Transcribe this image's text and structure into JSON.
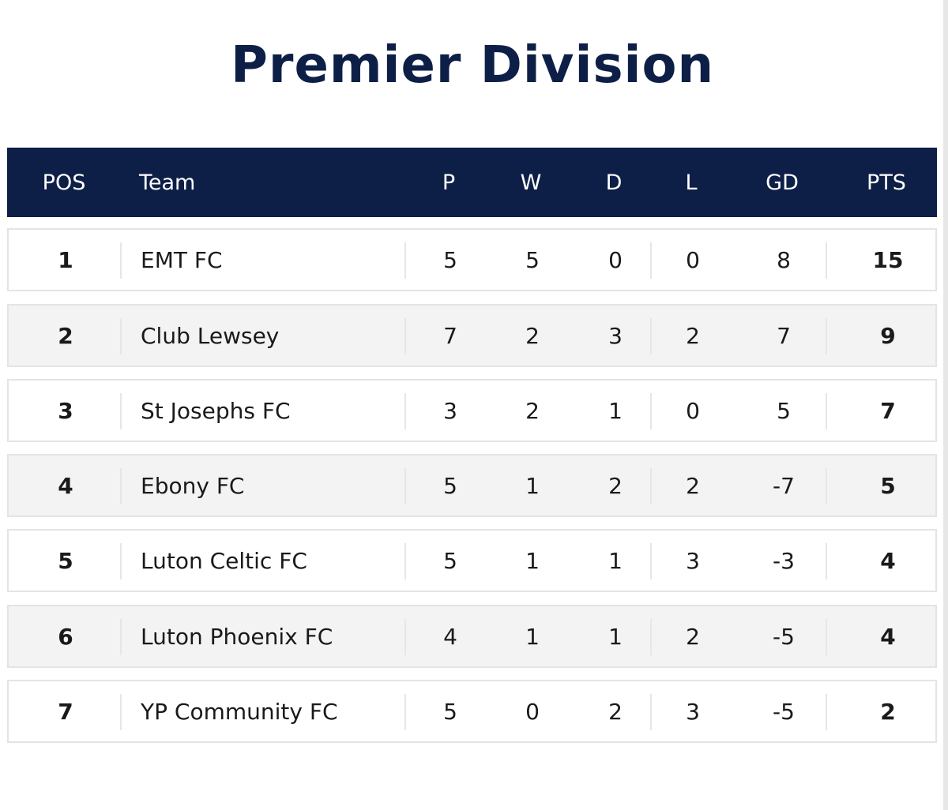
{
  "title": "Premier Division",
  "columns": {
    "pos": "POS",
    "team": "Team",
    "p": "P",
    "w": "W",
    "d": "D",
    "l": "L",
    "gd": "GD",
    "pts": "PTS"
  },
  "rows": [
    {
      "pos": "1",
      "team": "EMT FC",
      "p": "5",
      "w": "5",
      "d": "0",
      "l": "0",
      "gd": "8",
      "pts": "15"
    },
    {
      "pos": "2",
      "team": "Club Lewsey",
      "p": "7",
      "w": "2",
      "d": "3",
      "l": "2",
      "gd": "7",
      "pts": "9"
    },
    {
      "pos": "3",
      "team": "St Josephs FC",
      "p": "3",
      "w": "2",
      "d": "1",
      "l": "0",
      "gd": "5",
      "pts": "7"
    },
    {
      "pos": "4",
      "team": "Ebony FC",
      "p": "5",
      "w": "1",
      "d": "2",
      "l": "2",
      "gd": "-7",
      "pts": "5"
    },
    {
      "pos": "5",
      "team": "Luton Celtic FC",
      "p": "5",
      "w": "1",
      "d": "1",
      "l": "3",
      "gd": "-3",
      "pts": "4"
    },
    {
      "pos": "6",
      "team": "Luton Phoenix FC",
      "p": "4",
      "w": "1",
      "d": "1",
      "l": "2",
      "gd": "-5",
      "pts": "4"
    },
    {
      "pos": "7",
      "team": "YP Community FC",
      "p": "5",
      "w": "0",
      "d": "2",
      "l": "3",
      "gd": "-5",
      "pts": "2"
    }
  ],
  "colors": {
    "header_bg": "#0e1f47",
    "title": "#0e1f47",
    "alt_row": "#f3f3f3",
    "border": "#e4e4e4"
  }
}
